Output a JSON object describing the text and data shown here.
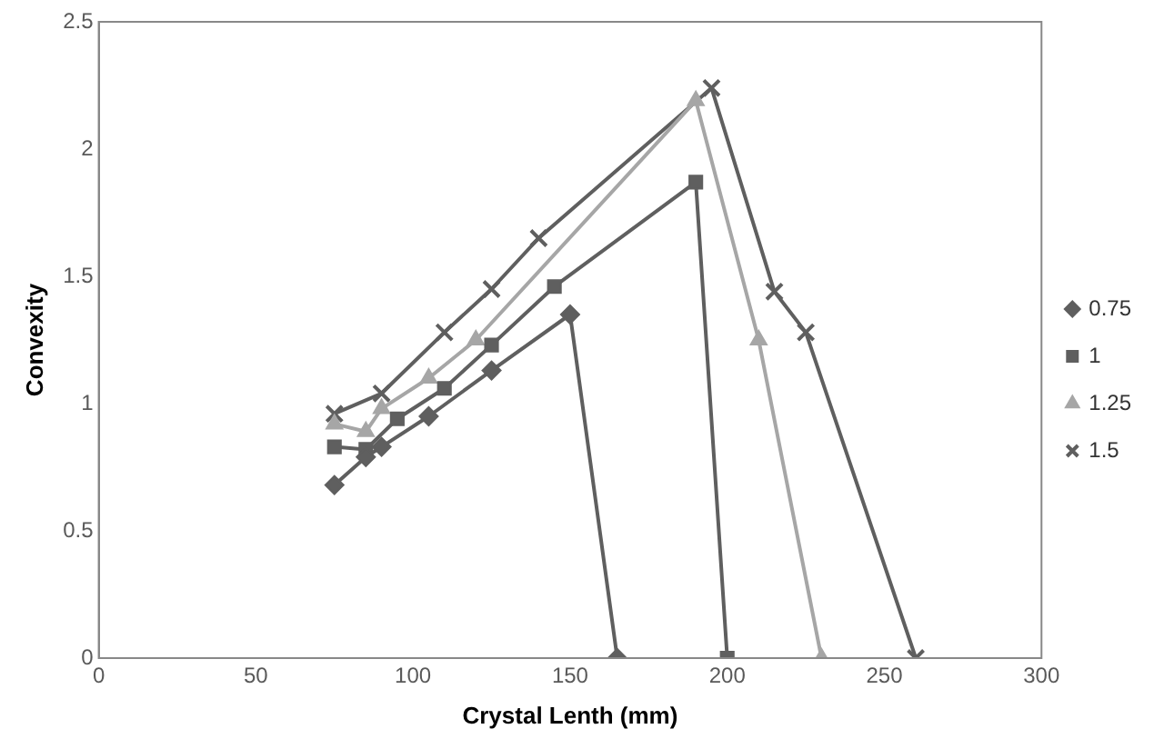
{
  "chart_data": {
    "type": "line",
    "xlabel": "Crystal Lenth (mm)",
    "ylabel": "Convexity",
    "xlim": [
      0,
      300
    ],
    "xticks": [
      0,
      50,
      100,
      150,
      200,
      250,
      300
    ],
    "ylim": [
      0,
      2.5
    ],
    "yticks": [
      0,
      0.5,
      1,
      1.5,
      2,
      2.5
    ],
    "grid": false,
    "legend": "right",
    "line_style": "solid",
    "series": [
      {
        "name": "0.75",
        "color": "#5f5f5f",
        "marker": "diamond",
        "x": [
          75,
          85,
          90,
          105,
          125,
          150,
          165
        ],
        "values": [
          0.68,
          0.79,
          0.83,
          0.95,
          1.13,
          1.35,
          0
        ]
      },
      {
        "name": "1",
        "color": "#5f5f5f",
        "marker": "square",
        "x": [
          75,
          85,
          95,
          110,
          125,
          145,
          190,
          200
        ],
        "values": [
          0.83,
          0.82,
          0.94,
          1.06,
          1.23,
          1.46,
          1.87,
          0
        ]
      },
      {
        "name": "1.25",
        "color": "#a6a6a6",
        "marker": "triangle",
        "x": [
          75,
          85,
          90,
          105,
          120,
          190,
          210,
          230
        ],
        "values": [
          0.92,
          0.89,
          0.98,
          1.1,
          1.25,
          2.19,
          1.25,
          0
        ]
      },
      {
        "name": "1.5",
        "color": "#5f5f5f",
        "marker": "cross",
        "x": [
          75,
          90,
          110,
          125,
          140,
          195,
          215,
          225,
          260
        ],
        "values": [
          0.96,
          1.04,
          1.28,
          1.45,
          1.65,
          2.24,
          1.44,
          1.28,
          0
        ]
      }
    ]
  }
}
